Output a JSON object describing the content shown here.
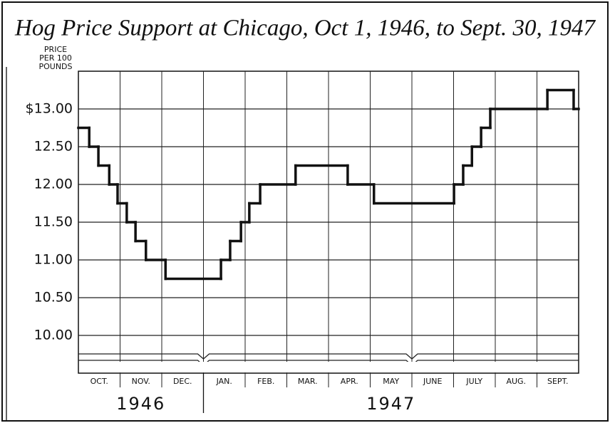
{
  "chart_data": {
    "type": "step",
    "title": "Hog Price Support at Chicago, Oct 1, 1946, to Sept. 30, 1947",
    "y_label": [
      "PRICE",
      "PER 100",
      "POUNDS"
    ],
    "categories": [
      "OCT.",
      "NOV.",
      "DEC.",
      "JAN.",
      "FEB.",
      "MAR.",
      "APR.",
      "MAY",
      "JUNE",
      "JULY",
      "AUG.",
      "SEPT."
    ],
    "years": [
      {
        "label": "1946",
        "months": 3
      },
      {
        "label": "1947",
        "months": 9
      }
    ],
    "x": [
      0,
      0.26,
      0.48,
      0.74,
      0.94,
      1.16,
      1.37,
      1.62,
      2.09,
      3.42,
      3.64,
      3.9,
      4.1,
      4.36,
      5.21,
      6.46,
      7.09,
      9.01,
      9.23,
      9.44,
      9.66,
      9.88,
      11.25,
      11.88
    ],
    "values": [
      12.75,
      12.5,
      12.25,
      12,
      11.75,
      11.5,
      11.25,
      11,
      10.75,
      11,
      11.25,
      11.5,
      11.75,
      12,
      12.25,
      12,
      11.75,
      12,
      12.25,
      12.5,
      12.75,
      13,
      13.25,
      13
    ],
    "xlim": [
      0,
      12
    ],
    "ylim": [
      9.5,
      13.5
    ],
    "yticks": [
      {
        "value": 13,
        "label": "$13.00"
      },
      {
        "value": 12.5,
        "label": "12.50"
      },
      {
        "value": 12,
        "label": "12.00"
      },
      {
        "value": 11.5,
        "label": "11.50"
      },
      {
        "value": 11,
        "label": "11.00"
      },
      {
        "value": 10.5,
        "label": "10.50"
      },
      {
        "value": 10,
        "label": "10.00"
      }
    ],
    "color": "#111111",
    "grid": true
  }
}
